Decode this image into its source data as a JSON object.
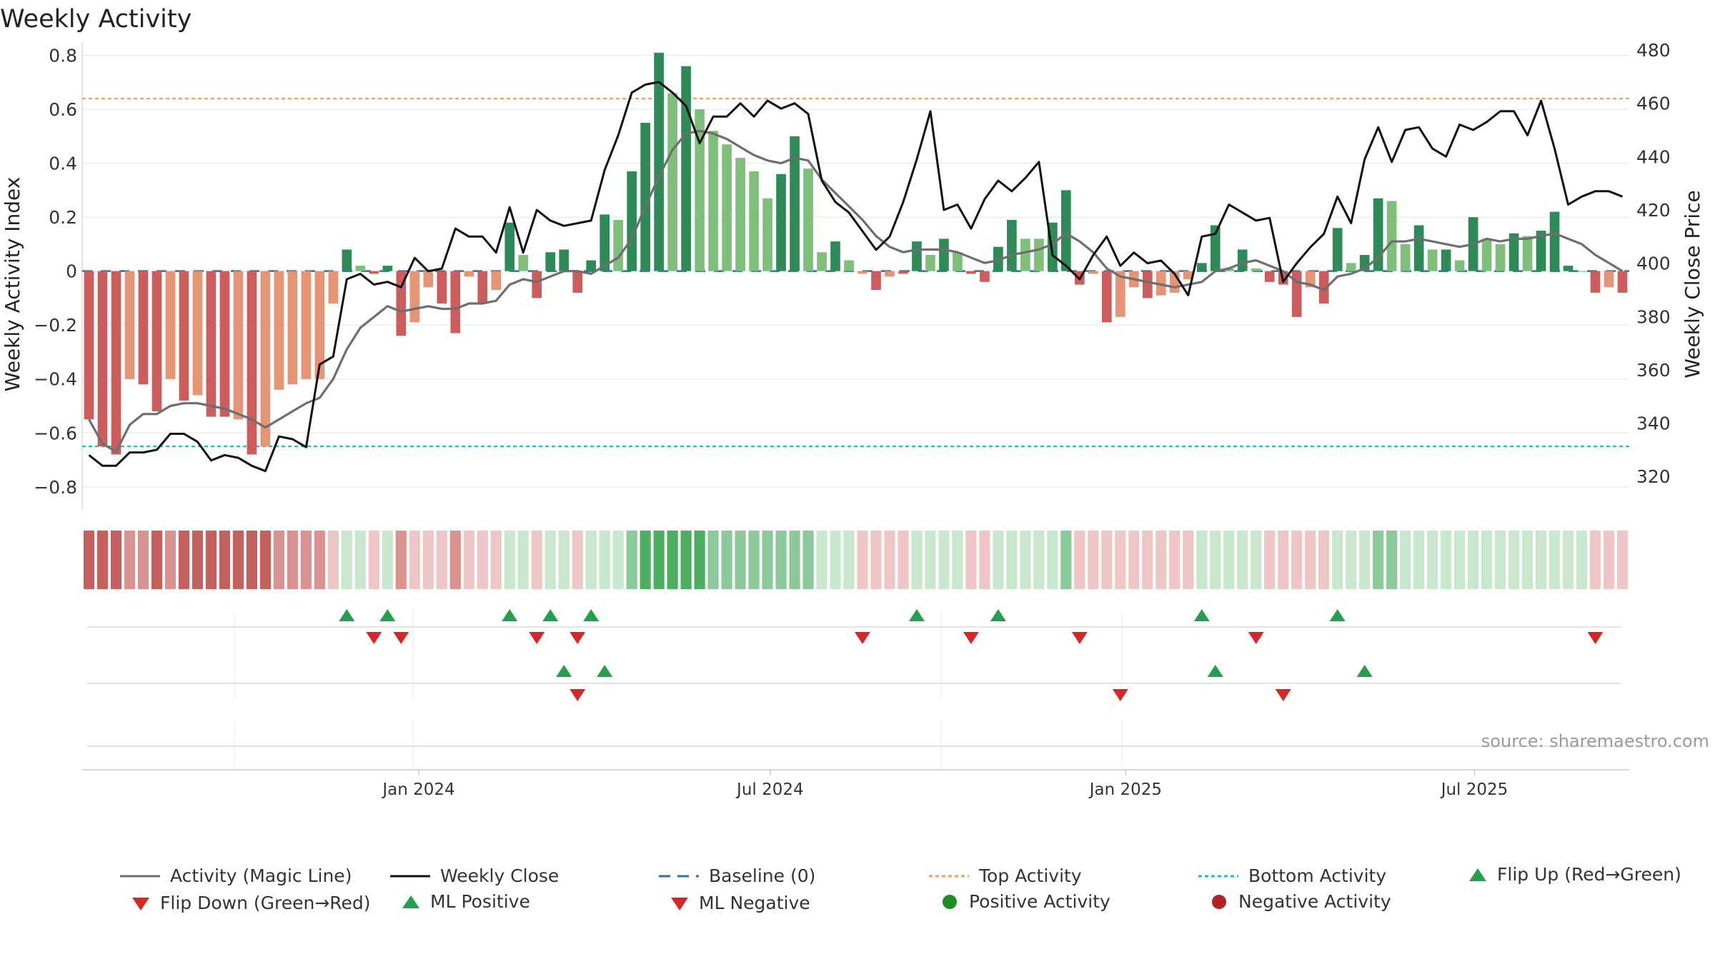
{
  "chart_data": {
    "type": "bar",
    "title": "Weekly Activity",
    "ylabel": "Weekly Activity Index",
    "y2label": "Weekly Close Price",
    "ylim": [
      -0.88,
      0.82
    ],
    "y2lim": [
      308,
      480
    ],
    "yticks": [
      0.8,
      0.6,
      0.4,
      0.2,
      0,
      -0.2,
      -0.4,
      -0.6,
      -0.8
    ],
    "yticklabels": [
      "0.8",
      "0.6",
      "0.4",
      "0.2",
      "0",
      "−0.2",
      "−0.4",
      "−0.6",
      "−0.8"
    ],
    "y2ticks": [
      480,
      460,
      440,
      420,
      400,
      380,
      360,
      340,
      320
    ],
    "y2ticklabels": [
      "480",
      "460",
      "440",
      "420",
      "400",
      "380",
      "360",
      "340",
      "320"
    ],
    "xlabels": [
      "Jan 2024",
      "Jul 2024",
      "Jan 2025",
      "Jul 2025"
    ],
    "xlabel_weeks": [
      24.3,
      50.2,
      76.4,
      102.1
    ],
    "top_activity": 0.64,
    "bottom_activity": -0.65,
    "weeks": 114,
    "activity": [
      -0.55,
      -0.65,
      -0.68,
      -0.4,
      -0.42,
      -0.52,
      -0.4,
      -0.48,
      -0.46,
      -0.54,
      -0.54,
      -0.55,
      -0.68,
      -0.65,
      -0.44,
      -0.42,
      -0.4,
      -0.4,
      -0.12,
      0.08,
      0.02,
      -0.01,
      0.02,
      -0.24,
      -0.19,
      -0.06,
      -0.12,
      -0.23,
      -0.02,
      -0.12,
      -0.07,
      0.18,
      0.06,
      -0.1,
      0.07,
      0.08,
      -0.08,
      0.04,
      0.21,
      0.19,
      0.37,
      0.55,
      0.81,
      0.66,
      0.76,
      0.6,
      0.52,
      0.47,
      0.42,
      0.37,
      0.27,
      0.36,
      0.5,
      0.38,
      0.07,
      0.11,
      0.04,
      -0.01,
      -0.07,
      -0.02,
      -0.01,
      0.11,
      0.06,
      0.12,
      0.07,
      -0.01,
      -0.04,
      0.09,
      0.19,
      0.12,
      0.12,
      0.18,
      0.3,
      -0.05,
      -0.01,
      -0.19,
      -0.17,
      -0.06,
      -0.1,
      -0.09,
      -0.08,
      -0.03,
      0.03,
      0.17,
      0.01,
      0.08,
      0.01,
      -0.04,
      -0.05,
      -0.17,
      -0.06,
      -0.12,
      0.16,
      0.03,
      0.06,
      0.27,
      0.26,
      0.1,
      0.17,
      0.08,
      0.08,
      0.04,
      0.2,
      0.12,
      0.1,
      0.14,
      0.13,
      0.15,
      0.22,
      0.02,
      0.0,
      -0.08,
      -0.06,
      -0.08
    ],
    "activity_bar_colors": [
      "#cd5c5c",
      "#cd5c5c",
      "#cd5c5c",
      "#e59476",
      "#cd5c5c",
      "#cd5c5c",
      "#e59476",
      "#cd5c5c",
      "#e59476",
      "#cd5c5c",
      "#cd5c5c",
      "#e59476",
      "#cd5c5c",
      "#e59476",
      "#e59476",
      "#e59476",
      "#e59476",
      "#e59476",
      "#e59476",
      "#2e8b57",
      "#7fbf7b",
      "#cd5c5c",
      "#2e8b57",
      "#cd5c5c",
      "#e59476",
      "#e59476",
      "#cd5c5c",
      "#cd5c5c",
      "#e59476",
      "#cd5c5c",
      "#e59476",
      "#2e8b57",
      "#7fbf7b",
      "#cd5c5c",
      "#2e8b57",
      "#2e8b57",
      "#cd5c5c",
      "#2e8b57",
      "#2e8b57",
      "#7fbf7b",
      "#2e8b57",
      "#2e8b57",
      "#2e8b57",
      "#7fbf7b",
      "#2e8b57",
      "#7fbf7b",
      "#7fbf7b",
      "#7fbf7b",
      "#7fbf7b",
      "#7fbf7b",
      "#7fbf7b",
      "#2e8b57",
      "#2e8b57",
      "#7fbf7b",
      "#7fbf7b",
      "#2e8b57",
      "#7fbf7b",
      "#e59476",
      "#cd5c5c",
      "#e59476",
      "#cd5c5c",
      "#2e8b57",
      "#7fbf7b",
      "#2e8b57",
      "#7fbf7b",
      "#cd5c5c",
      "#cd5c5c",
      "#2e8b57",
      "#2e8b57",
      "#7fbf7b",
      "#7fbf7b",
      "#2e8b57",
      "#2e8b57",
      "#cd5c5c",
      "#e59476",
      "#cd5c5c",
      "#e59476",
      "#e59476",
      "#cd5c5c",
      "#e59476",
      "#e59476",
      "#e59476",
      "#2e8b57",
      "#2e8b57",
      "#7fbf7b",
      "#2e8b57",
      "#7fbf7b",
      "#cd5c5c",
      "#cd5c5c",
      "#cd5c5c",
      "#e59476",
      "#cd5c5c",
      "#2e8b57",
      "#7fbf7b",
      "#2e8b57",
      "#2e8b57",
      "#7fbf7b",
      "#7fbf7b",
      "#2e8b57",
      "#7fbf7b",
      "#2e8b57",
      "#7fbf7b",
      "#2e8b57",
      "#7fbf7b",
      "#7fbf7b",
      "#2e8b57",
      "#7fbf7b",
      "#2e8b57",
      "#2e8b57",
      "#2e8b57",
      "#7fbf7b",
      "#cd5c5c",
      "#e59476",
      "#cd5c5c"
    ],
    "magic_line": [
      -0.55,
      -0.64,
      -0.67,
      -0.57,
      -0.53,
      -0.53,
      -0.5,
      -0.49,
      -0.49,
      -0.5,
      -0.51,
      -0.53,
      -0.55,
      -0.58,
      -0.55,
      -0.52,
      -0.49,
      -0.47,
      -0.4,
      -0.29,
      -0.21,
      -0.17,
      -0.13,
      -0.15,
      -0.14,
      -0.13,
      -0.14,
      -0.14,
      -0.12,
      -0.12,
      -0.11,
      -0.05,
      -0.03,
      -0.04,
      -0.02,
      0.0,
      0.0,
      -0.01,
      0.02,
      0.05,
      0.12,
      0.24,
      0.35,
      0.45,
      0.51,
      0.52,
      0.51,
      0.49,
      0.46,
      0.43,
      0.41,
      0.4,
      0.42,
      0.41,
      0.34,
      0.29,
      0.24,
      0.19,
      0.13,
      0.09,
      0.07,
      0.08,
      0.08,
      0.08,
      0.07,
      0.05,
      0.03,
      0.04,
      0.06,
      0.07,
      0.08,
      0.1,
      0.14,
      0.11,
      0.07,
      0.01,
      -0.02,
      -0.03,
      -0.04,
      -0.05,
      -0.06,
      -0.05,
      -0.04,
      0.0,
      0.01,
      0.03,
      0.04,
      0.02,
      0.0,
      -0.04,
      -0.05,
      -0.07,
      -0.02,
      -0.01,
      0.01,
      0.05,
      0.11,
      0.11,
      0.12,
      0.11,
      0.1,
      0.09,
      0.1,
      0.12,
      0.11,
      0.12,
      0.12,
      0.13,
      0.14,
      0.12,
      0.1,
      0.06,
      0.03,
      0.0
    ],
    "weekly_close": [
      328,
      324,
      324,
      329,
      329,
      330,
      336,
      336,
      333,
      326,
      328,
      327,
      324,
      322,
      335,
      334,
      331,
      362,
      365,
      394,
      396,
      392,
      393,
      391,
      402,
      397,
      398,
      413,
      410,
      410,
      404,
      421,
      404,
      420,
      416,
      414,
      415,
      416,
      435,
      448,
      464,
      467,
      468,
      464,
      459,
      445,
      455,
      455,
      460,
      455,
      461,
      458,
      460,
      456,
      431,
      423,
      419,
      412,
      405,
      410,
      423,
      439,
      457,
      420,
      422,
      413,
      424,
      431,
      427,
      432,
      438,
      403,
      399,
      394,
      403,
      410,
      399,
      404,
      400,
      401,
      396,
      388,
      410,
      411,
      422,
      419,
      416,
      417,
      393,
      400,
      406,
      411,
      425,
      415,
      439,
      451,
      438,
      450,
      451,
      443,
      440,
      452,
      450,
      453,
      457,
      457,
      448,
      461,
      443,
      422,
      425,
      427,
      427,
      425
    ]
  },
  "markers": {
    "row1_up_weeks": [
      19,
      22,
      31,
      34,
      37,
      61,
      67,
      82,
      92
    ],
    "row1_down_weeks": [
      21,
      23,
      33,
      36,
      57,
      65,
      73,
      86,
      111
    ],
    "row2_up_weeks": [
      35,
      38,
      83,
      94
    ],
    "row2_down_weeks": [
      36,
      76,
      88
    ]
  },
  "heatmap_row": {
    "description_colors": {
      "strong_red": "#c4605e",
      "red": "#d99290",
      "light_red": "#edc6c5",
      "light_green": "#c9e7cc",
      "green": "#8cc99a",
      "strong_green": "#4caf5f"
    }
  },
  "source_text": "source: sharemaestro.com",
  "legend": {
    "items": [
      {
        "label": "Activity (Magic Line)",
        "color": "#6e6e6e"
      },
      {
        "label": "Weekly Close",
        "color": "#111111"
      },
      {
        "label": "Baseline (0)",
        "color": "#2f6fa8"
      },
      {
        "label": "Top Activity",
        "color": "#f0a060"
      },
      {
        "label": "Bottom Activity",
        "color": "#22b8cf"
      },
      {
        "label": "Flip Up (Red→Green)",
        "color": "#22a04b"
      },
      {
        "label": "Flip Down (Green→Red)",
        "color": "#d62728"
      },
      {
        "label": "ML Positive",
        "color": "#22a04b"
      },
      {
        "label": "ML Negative",
        "color": "#d62728"
      },
      {
        "label": "Positive Activity",
        "color": "#228b22"
      },
      {
        "label": "Negative Activity",
        "color": "#b22222"
      }
    ]
  },
  "colors": {
    "magic_line": "#6e6e6e",
    "weekly_close": "#111111",
    "baseline": "#2f6fa8",
    "top_activity": "#f0a060",
    "bottom_activity": "#22b8cf",
    "up_marker": "#22a04b",
    "down_marker": "#d62728"
  }
}
